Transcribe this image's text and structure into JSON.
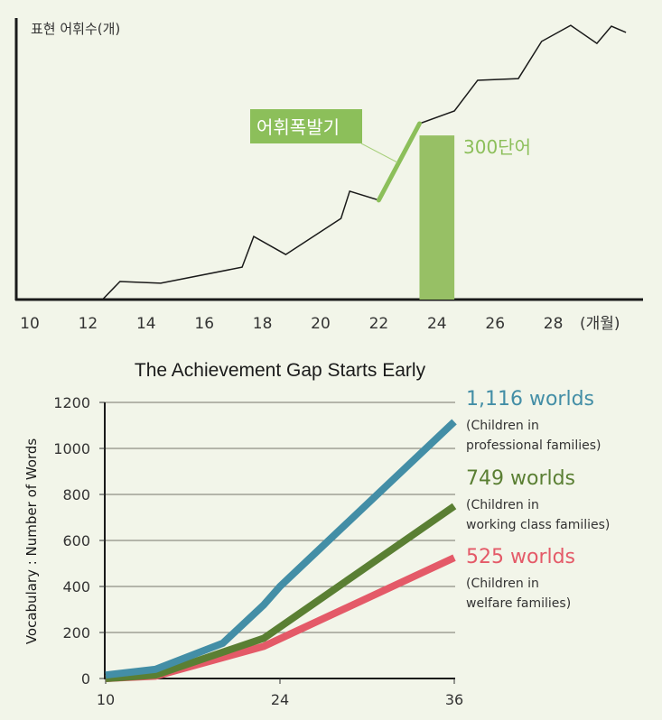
{
  "chart_data": [
    {
      "type": "line",
      "title": "",
      "ylabel": "표현 어휘수(개)",
      "xlabel": "(개월)",
      "x_ticks": [
        10,
        12,
        14,
        16,
        18,
        20,
        22,
        24,
        26,
        28
      ],
      "x_tick_labels": [
        "10",
        "12",
        "14",
        "16",
        "18",
        "20",
        "22",
        "24",
        "26",
        "28"
      ],
      "xlim": [
        9.5,
        30.5
      ],
      "ylim": [
        0,
        100
      ],
      "y_unit_note": "relative scale (no y tick labels shown)",
      "grid": false,
      "series": [
        {
          "name": "expressive-vocabulary",
          "color": "#1a1a1a",
          "points": [
            [
              12.5,
              0
            ],
            [
              13.1,
              6.4
            ],
            [
              14.5,
              5.8
            ],
            [
              17.3,
              11.5
            ],
            [
              17.7,
              22.4
            ],
            [
              18.8,
              16.0
            ],
            [
              20.7,
              28.8
            ],
            [
              21.0,
              38.5
            ],
            [
              22.0,
              35.3
            ],
            [
              23.4,
              62.5
            ],
            [
              24.6,
              67.0
            ],
            [
              25.4,
              77.9
            ],
            [
              26.8,
              78.5
            ],
            [
              27.6,
              91.7
            ],
            [
              28.6,
              97.4
            ],
            [
              29.5,
              91.0
            ],
            [
              30.0,
              97.1
            ],
            [
              30.5,
              94.9
            ]
          ]
        }
      ],
      "highlight_segment": {
        "label": "어휘폭발기",
        "from_x": 22.0,
        "to_x": 23.4,
        "color": "#8cbf5a"
      },
      "bar": {
        "label": "300단어",
        "x_from": 23.4,
        "x_to": 24.6,
        "value": 58.3,
        "color": "#97c065"
      }
    },
    {
      "type": "line",
      "title": "The Achievement Gap Starts Early",
      "xlabel": "",
      "ylabel": "Vocabulary : Number of Words",
      "x_ticks": [
        10,
        24,
        36
      ],
      "x_tick_labels": [
        "10",
        "24",
        "36"
      ],
      "xlim": [
        10,
        36
      ],
      "y_ticks": [
        0,
        200,
        400,
        600,
        800,
        1000,
        1200
      ],
      "y_tick_labels": [
        "0",
        "200",
        "400",
        "600",
        "800",
        "1000",
        "1200"
      ],
      "ylim": [
        0,
        1200
      ],
      "grid": true,
      "legend": "right",
      "series": [
        {
          "name": "Children in professional families",
          "value_label": "1,116 worlds",
          "desc_line1": "(Children in",
          "desc_line2": "professional families)",
          "color": "#438ea6",
          "x": [
            10,
            14,
            19.4,
            22.7,
            24,
            36
          ],
          "values": [
            15,
            40,
            153,
            320,
            400,
            1116
          ]
        },
        {
          "name": "Children in working class families",
          "value_label": "749 worlds",
          "desc_line1": "(Children in",
          "desc_line2": "working class families)",
          "color": "#5a7f33",
          "x": [
            10,
            14,
            22.7,
            36
          ],
          "values": [
            0,
            15,
            175,
            749
          ]
        },
        {
          "name": "Children in welfare families",
          "value_label": "525 worlds",
          "desc_line1": "(Children in",
          "desc_line2": "welfare families)",
          "color": "#e45a68",
          "x": [
            10,
            14,
            22.7,
            36
          ],
          "values": [
            0,
            10,
            140,
            525
          ]
        }
      ]
    }
  ]
}
